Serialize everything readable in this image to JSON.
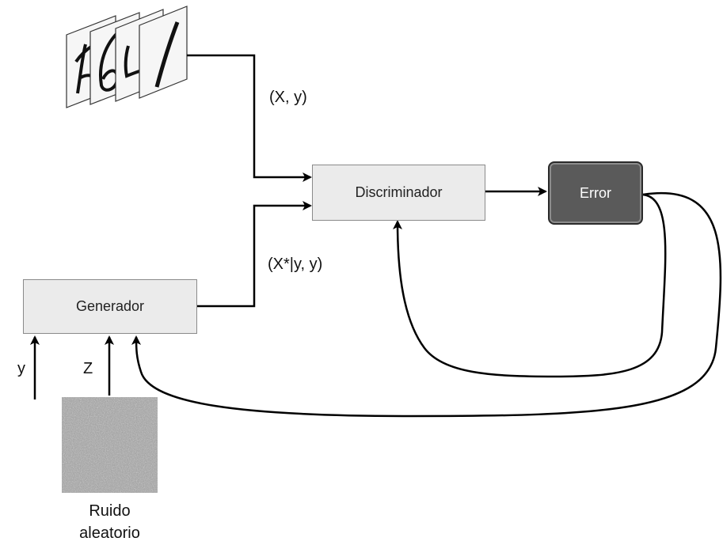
{
  "nodes": {
    "discriminator": "Discriminador",
    "generator": "Generador",
    "error": "Error"
  },
  "edge_labels": {
    "real_pair": "(X, y)",
    "fake_pair": "(X*|y, y)",
    "label_input": "y",
    "noise_input": "Z"
  },
  "noise_caption": {
    "line1": "Ruido",
    "line2": "aleatorio"
  },
  "colors": {
    "box_fill": "#ebebeb",
    "error_fill": "#5a5a5a",
    "arrow": "#000000"
  }
}
